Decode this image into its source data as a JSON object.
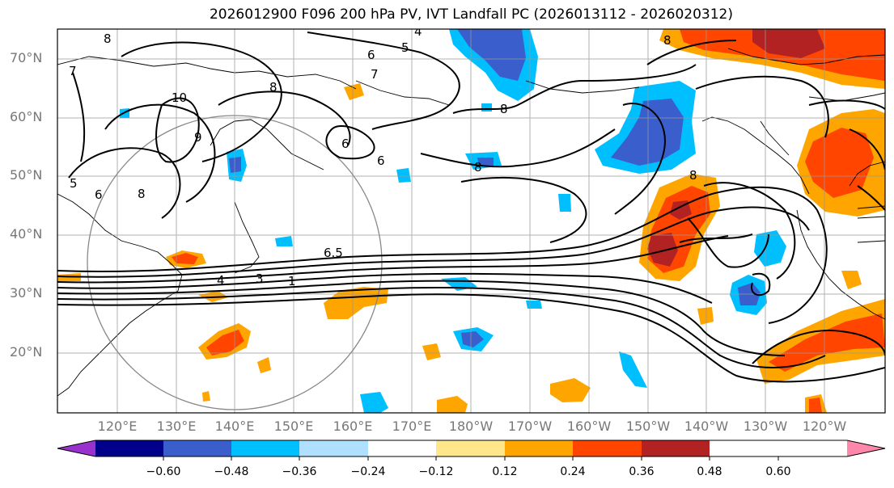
{
  "title": "2026012900 F096 200 hPa PV, IVT Landfall PC (2026013112 - 2026020312)",
  "lat_labels": [
    "70°N",
    "60°N",
    "50°N",
    "40°N",
    "30°N",
    "20°N"
  ],
  "lon_labels": [
    "120°E",
    "130°E",
    "140°E",
    "150°E",
    "160°E",
    "170°E",
    "180°W",
    "170°W",
    "160°W",
    "150°W",
    "140°W",
    "130°W",
    "120°W"
  ],
  "colorbar": {
    "tick_labels": [
      "−0.60",
      "−0.48",
      "−0.36",
      "−0.24",
      "−0.12",
      "0.12",
      "0.24",
      "0.36",
      "0.48",
      "0.60"
    ],
    "colors": [
      "#9932cc",
      "#00008b",
      "#3a5fcd",
      "#00bfff",
      "#b0e0ff",
      "#ffffff",
      "#ffe68a",
      "#ffa500",
      "#ff4500",
      "#b22222",
      "#ff88aa"
    ]
  },
  "contour_labels": [
    "4",
    "5",
    "6",
    "7",
    "8",
    "8",
    "10",
    "9",
    "7",
    "6",
    "6",
    "8",
    "8",
    "5",
    "6",
    "8",
    "8",
    "8",
    "6.5",
    "3",
    "1",
    "4"
  ]
}
